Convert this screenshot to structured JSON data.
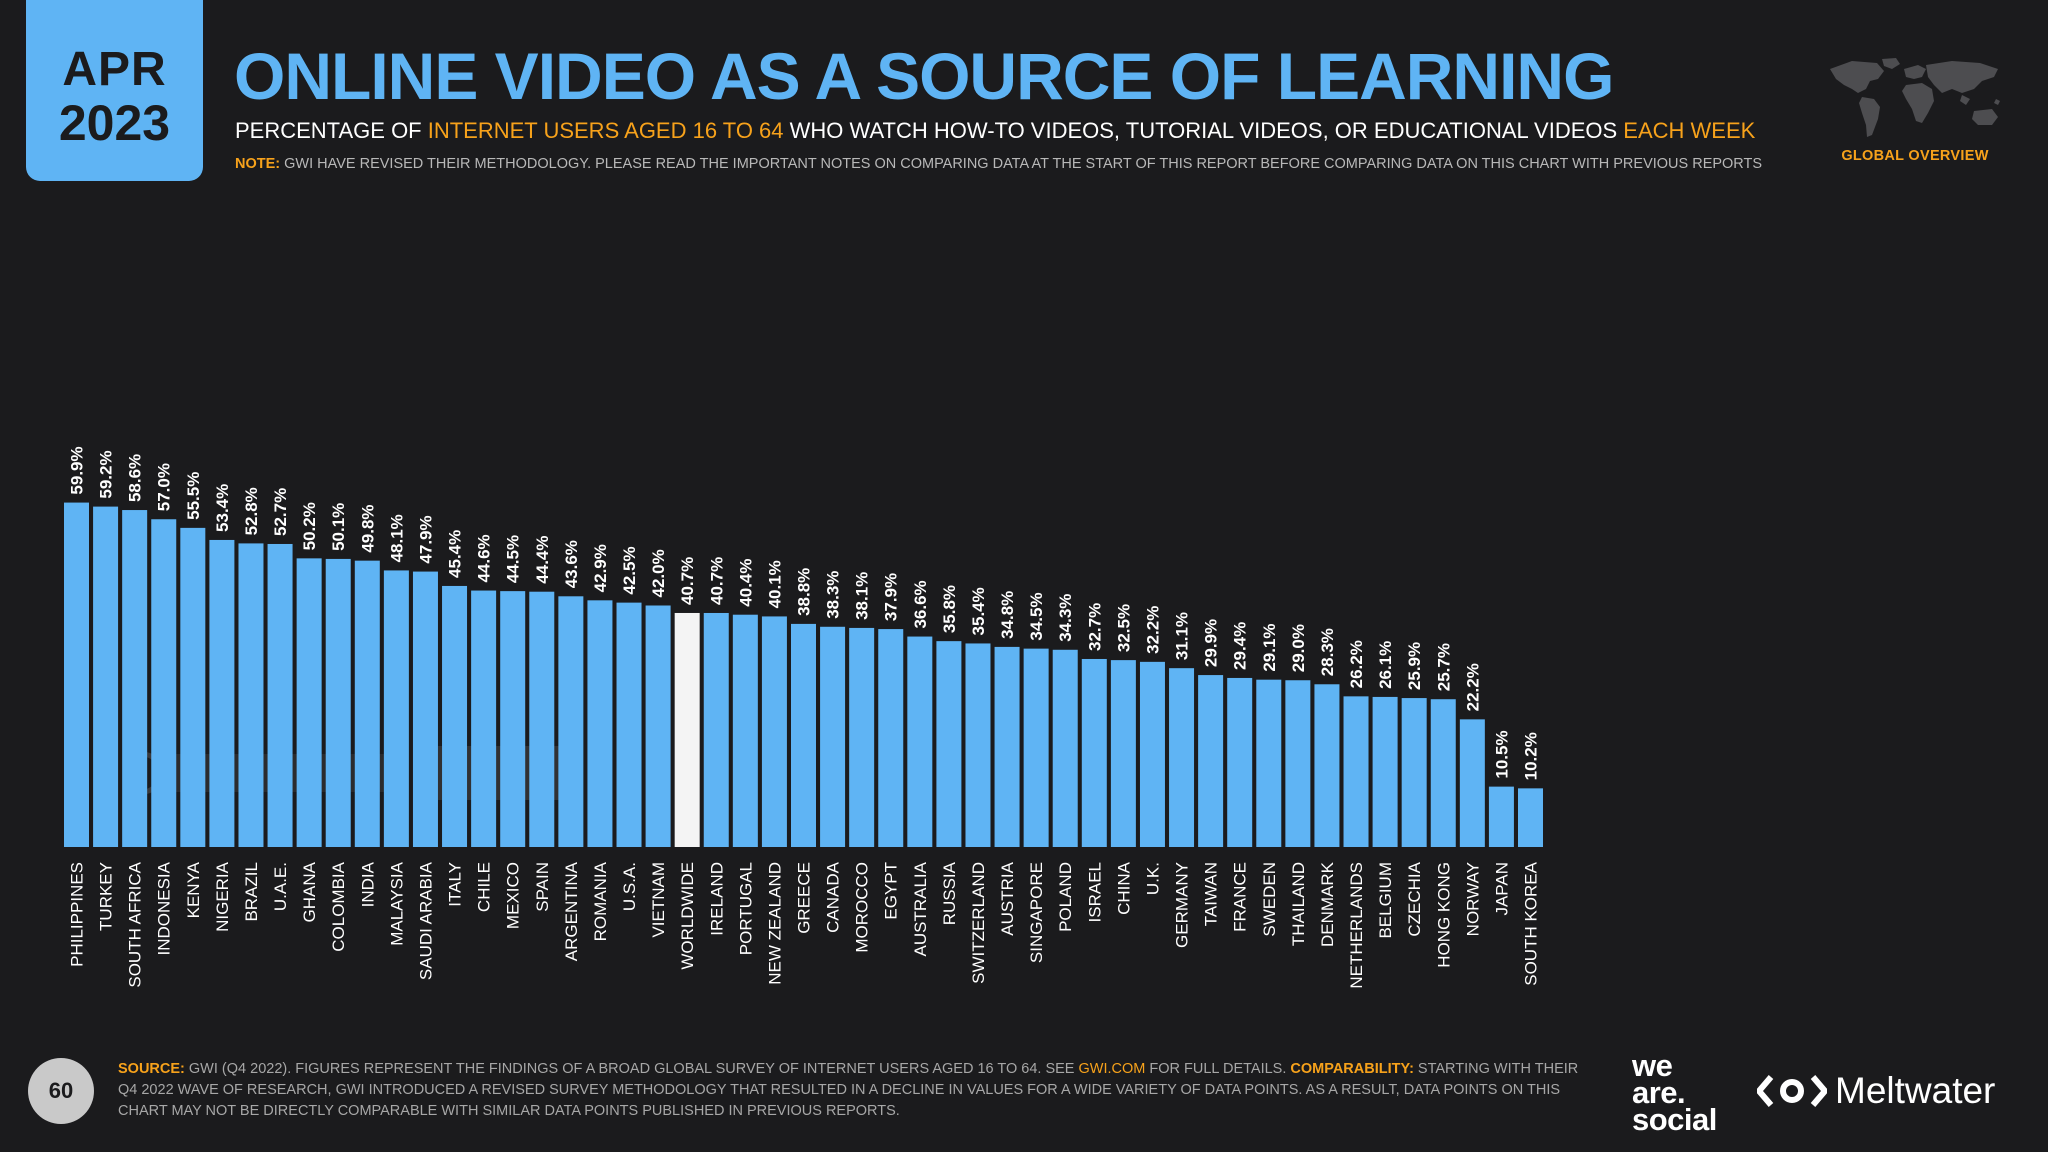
{
  "header": {
    "month": "APR",
    "year": "2023",
    "title": "ONLINE VIDEO AS A SOURCE OF LEARNING",
    "subtitle": {
      "part1": "PERCENTAGE OF ",
      "highlight1": "INTERNET USERS AGED 16 TO 64",
      "part2": " WHO WATCH HOW-TO VIDEOS, TUTORIAL VIDEOS, OR EDUCATIONAL VIDEOS ",
      "highlight2": "EACH WEEK"
    },
    "note_label": "NOTE:",
    "note_text": " GWI HAVE REVISED THEIR METHODOLOGY. PLEASE READ THE IMPORTANT NOTES ON COMPARING DATA AT THE START OF THIS REPORT BEFORE COMPARING DATA ON THIS CHART WITH PREVIOUS REPORTS",
    "section": "GLOBAL OVERVIEW"
  },
  "icons": {
    "map": "world-map-icon",
    "watermark": "datareportal-gwi-watermark",
    "meltwater": "meltwater-logo-icon"
  },
  "colors": {
    "background": "#1b1b1d",
    "accent": "#5fb4f4",
    "highlight": "#f7a21b",
    "worldwide_bar": "#f4f4f4"
  },
  "chart_data": {
    "type": "bar",
    "categories": [
      "PHILIPPINES",
      "TURKEY",
      "SOUTH AFRICA",
      "INDONESIA",
      "KENYA",
      "NIGERIA",
      "BRAZIL",
      "U.A.E.",
      "GHANA",
      "COLOMBIA",
      "INDIA",
      "MALAYSIA",
      "SAUDI ARABIA",
      "ITALY",
      "CHILE",
      "MEXICO",
      "SPAIN",
      "ARGENTINA",
      "ROMANIA",
      "U.S.A.",
      "VIETNAM",
      "WORLDWIDE",
      "IRELAND",
      "PORTUGAL",
      "NEW ZEALAND",
      "GREECE",
      "CANADA",
      "MOROCCO",
      "EGYPT",
      "AUSTRALIA",
      "RUSSIA",
      "SWITZERLAND",
      "AUSTRIA",
      "SINGAPORE",
      "POLAND",
      "ISRAEL",
      "CHINA",
      "U.K.",
      "GERMANY",
      "TAIWAN",
      "FRANCE",
      "SWEDEN",
      "THAILAND",
      "DENMARK",
      "NETHERLANDS",
      "BELGIUM",
      "CZECHIA",
      "HONG KONG",
      "NORWAY",
      "JAPAN",
      "SOUTH KOREA"
    ],
    "values": [
      59.9,
      59.2,
      58.6,
      57.0,
      55.5,
      53.4,
      52.8,
      52.7,
      50.2,
      50.1,
      49.8,
      48.1,
      47.9,
      45.4,
      44.6,
      44.5,
      44.4,
      43.6,
      42.9,
      42.5,
      42.0,
      40.7,
      40.7,
      40.4,
      40.1,
      38.8,
      38.3,
      38.1,
      37.9,
      36.6,
      35.8,
      35.4,
      34.8,
      34.5,
      34.3,
      32.7,
      32.5,
      32.2,
      31.1,
      29.9,
      29.4,
      29.1,
      29.0,
      28.3,
      26.2,
      26.1,
      25.9,
      25.7,
      22.2,
      10.5,
      10.2
    ],
    "value_labels": [
      "59.9%",
      "59.2%",
      "58.6%",
      "57.0%",
      "55.5%",
      "53.4%",
      "52.8%",
      "52.7%",
      "50.2%",
      "50.1%",
      "49.8%",
      "48.1%",
      "47.9%",
      "45.4%",
      "44.6%",
      "44.5%",
      "44.4%",
      "43.6%",
      "42.9%",
      "42.5%",
      "42.0%",
      "40.7%",
      "40.7%",
      "40.4%",
      "40.1%",
      "38.8%",
      "38.3%",
      "38.1%",
      "37.9%",
      "36.6%",
      "35.8%",
      "35.4%",
      "34.8%",
      "34.5%",
      "34.3%",
      "32.7%",
      "32.5%",
      "32.2%",
      "31.1%",
      "29.9%",
      "29.4%",
      "29.1%",
      "29.0%",
      "28.3%",
      "26.2%",
      "26.1%",
      "25.9%",
      "25.7%",
      "22.2%",
      "10.5%",
      "10.2%"
    ],
    "highlight_category": "WORLDWIDE",
    "ylim": [
      0,
      60
    ],
    "grid": false,
    "legend": "none"
  },
  "footer": {
    "page_number": "60",
    "source_label": "SOURCE:",
    "source_text1": " GWI (Q4 2022). FIGURES REPRESENT THE FINDINGS OF A BROAD GLOBAL SURVEY OF INTERNET USERS AGED 16 TO 64. SEE ",
    "source_link": "GWI.COM",
    "source_text2": " FOR FULL DETAILS. ",
    "comparability_label": "COMPARABILITY:",
    "comparability_text": " STARTING WITH THEIR Q4 2022 WAVE OF RESEARCH, GWI INTRODUCED A REVISED SURVEY METHODOLOGY THAT RESULTED IN A DECLINE IN VALUES FOR A WIDE VARIETY OF DATA POINTS. AS A RESULT, DATA POINTS ON THIS CHART MAY NOT BE DIRECTLY COMPARABLE WITH SIMILAR DATA POINTS PUBLISHED IN PREVIOUS REPORTS.",
    "brand1_line1": "we",
    "brand1_line2": "are.",
    "brand1_line3": "social",
    "brand2": "Meltwater"
  }
}
